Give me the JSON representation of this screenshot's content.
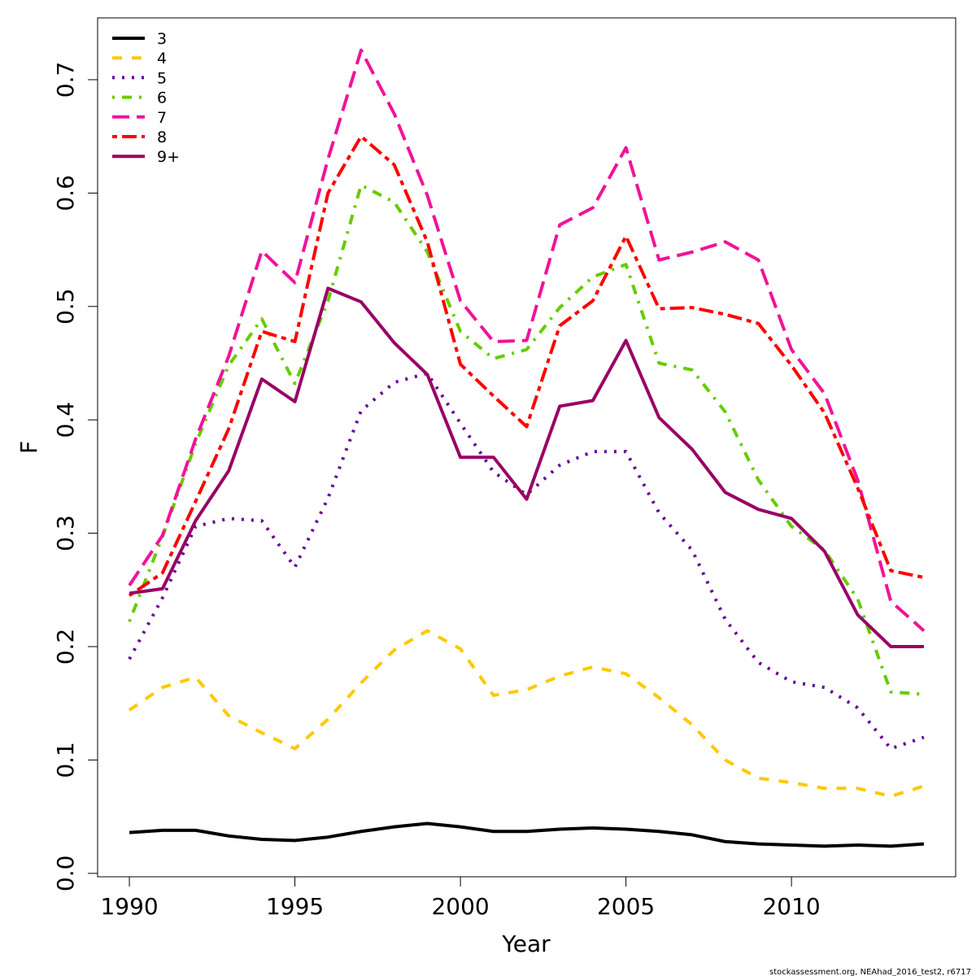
{
  "chart_data": {
    "type": "line",
    "xlabel": "Year",
    "ylabel": "F",
    "footer": "stockassessment.org, NEAhad_2016_test2, r6717",
    "x": [
      1990,
      1991,
      1992,
      1993,
      1994,
      1995,
      1996,
      1997,
      1998,
      1999,
      2000,
      2001,
      2002,
      2003,
      2004,
      2005,
      2006,
      2007,
      2008,
      2009,
      2010,
      2011,
      2012,
      2013,
      2014
    ],
    "xlim": [
      1989.04,
      2014.96
    ],
    "xticks": [
      1990,
      1995,
      2000,
      2005,
      2010
    ],
    "ylim": [
      -0.003,
      0.7545
    ],
    "yticks": [
      {
        "value": 0,
        "label": "0.0"
      },
      0.1,
      0.2,
      0.3,
      0.4,
      0.5,
      0.6,
      0.7
    ],
    "legend": "top-left",
    "series": [
      {
        "name": "3",
        "color": "#000000",
        "dash": "solid",
        "values": [
          0.036,
          0.038,
          0.038,
          0.033,
          0.03,
          0.029,
          0.032,
          0.037,
          0.041,
          0.044,
          0.041,
          0.037,
          0.037,
          0.039,
          0.04,
          0.039,
          0.037,
          0.034,
          0.028,
          0.026,
          0.025,
          0.024,
          0.025,
          0.024,
          0.026
        ]
      },
      {
        "name": "4",
        "color": "#ffc800",
        "dash": "dashed",
        "values": [
          0.144,
          0.164,
          0.173,
          0.139,
          0.124,
          0.11,
          0.136,
          0.168,
          0.197,
          0.214,
          0.198,
          0.157,
          0.162,
          0.174,
          0.182,
          0.176,
          0.155,
          0.131,
          0.1,
          0.084,
          0.08,
          0.075,
          0.075,
          0.068,
          0.077
        ]
      },
      {
        "name": "5",
        "color": "#660099",
        "dash": "dotted",
        "values": [
          0.189,
          0.243,
          0.306,
          0.313,
          0.311,
          0.27,
          0.331,
          0.408,
          0.433,
          0.441,
          0.397,
          0.354,
          0.334,
          0.36,
          0.372,
          0.372,
          0.318,
          0.285,
          0.224,
          0.186,
          0.169,
          0.164,
          0.146,
          0.11,
          0.12
        ]
      },
      {
        "name": "6",
        "color": "#66cc00",
        "dash": "dotdash",
        "values": [
          0.222,
          0.297,
          0.379,
          0.448,
          0.489,
          0.432,
          0.505,
          0.607,
          0.592,
          0.548,
          0.478,
          0.454,
          0.462,
          0.499,
          0.526,
          0.537,
          0.45,
          0.444,
          0.407,
          0.347,
          0.306,
          0.285,
          0.242,
          0.16,
          0.158
        ]
      },
      {
        "name": "7",
        "color": "#f0139a",
        "dash": "longdash",
        "values": [
          0.254,
          0.298,
          0.383,
          0.456,
          0.549,
          0.521,
          0.63,
          0.726,
          0.67,
          0.598,
          0.505,
          0.469,
          0.47,
          0.572,
          0.587,
          0.64,
          0.541,
          0.548,
          0.557,
          0.541,
          0.462,
          0.423,
          0.347,
          0.24,
          0.214
        ]
      },
      {
        "name": "8",
        "color": "#ff0000",
        "dash": "twodash",
        "values": [
          0.245,
          0.265,
          0.328,
          0.392,
          0.478,
          0.469,
          0.6,
          0.65,
          0.625,
          0.557,
          0.449,
          0.421,
          0.394,
          0.483,
          0.505,
          0.562,
          0.498,
          0.499,
          0.493,
          0.485,
          0.448,
          0.406,
          0.34,
          0.267,
          0.261
        ]
      },
      {
        "name": "9+",
        "color": "#990066",
        "dash": "solid",
        "values": [
          0.247,
          0.251,
          0.311,
          0.355,
          0.436,
          0.416,
          0.516,
          0.504,
          0.468,
          0.44,
          0.367,
          0.367,
          0.33,
          0.412,
          0.417,
          0.47,
          0.402,
          0.374,
          0.336,
          0.321,
          0.313,
          0.284,
          0.228,
          0.2,
          0.2
        ]
      }
    ]
  }
}
